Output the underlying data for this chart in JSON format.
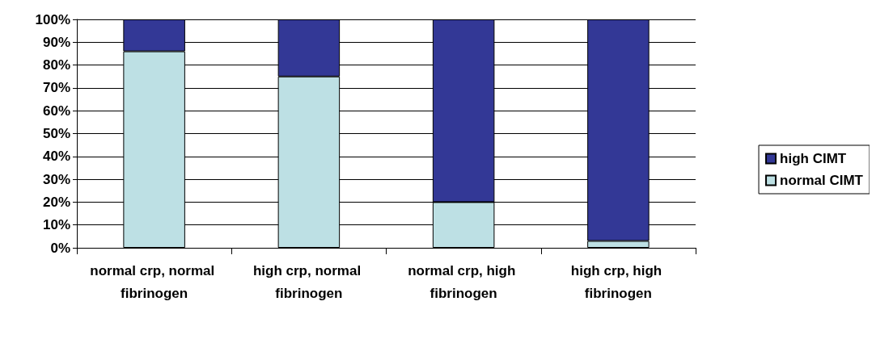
{
  "chart_data": {
    "type": "bar",
    "stacked": true,
    "categories": [
      "normal crp, normal fibrinogen",
      "high crp, normal fibrinogen",
      "normal crp, high fibrinogen",
      "high crp, high fibrinogen"
    ],
    "series": [
      {
        "name": "normal CIMT",
        "color": "#bde0e4",
        "values": [
          86,
          75,
          20,
          3
        ]
      },
      {
        "name": "high CIMT",
        "color": "#333896",
        "values": [
          14,
          25,
          80,
          97
        ]
      }
    ],
    "ylim": [
      0,
      100
    ],
    "yticks": [
      {
        "value": 0,
        "label": "0%"
      },
      {
        "value": 10,
        "label": "10%"
      },
      {
        "value": 20,
        "label": "20%"
      },
      {
        "value": 30,
        "label": "30%"
      },
      {
        "value": 40,
        "label": "40%"
      },
      {
        "value": 50,
        "label": "50%"
      },
      {
        "value": 60,
        "label": "60%"
      },
      {
        "value": 70,
        "label": "70%"
      },
      {
        "value": 80,
        "label": "80%"
      },
      {
        "value": 90,
        "label": "90%"
      },
      {
        "value": 100,
        "label": "100%"
      }
    ],
    "grid": "y",
    "legend": "right"
  }
}
